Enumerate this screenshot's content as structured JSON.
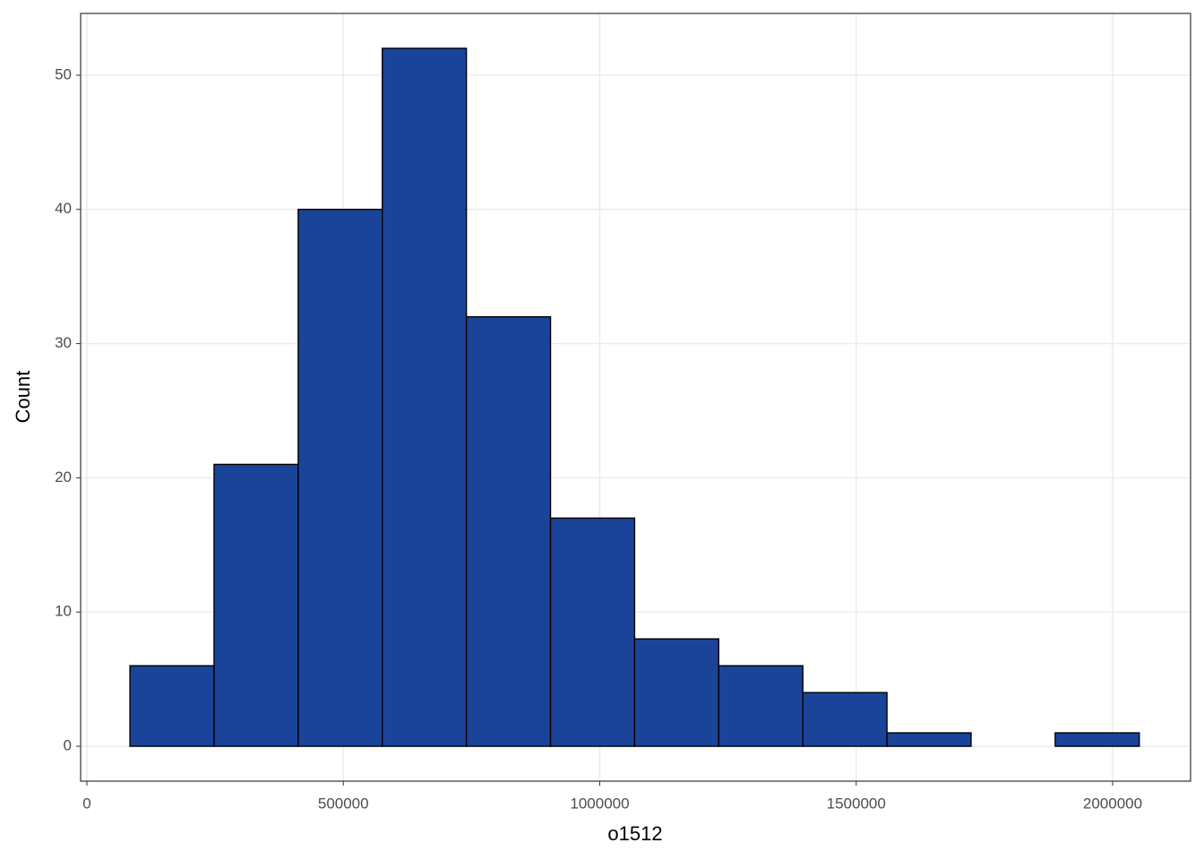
{
  "chart_data": {
    "type": "histogram",
    "x_label": "o1512",
    "y_label": "Count",
    "bins": [
      84000,
      248000,
      412000,
      576000,
      740000,
      904000,
      1068000,
      1232000,
      1396000,
      1560000,
      1724000,
      1888000,
      2052000
    ],
    "values": [
      6,
      21,
      40,
      52,
      32,
      17,
      8,
      6,
      4,
      1,
      0,
      1
    ],
    "color": "#1a4499",
    "xlim": [
      -12200,
      2152000
    ],
    "ylim": [
      -2.6,
      54.6
    ],
    "xticks": [
      0,
      500000,
      1000000,
      1500000,
      2000000
    ],
    "yticks": [
      0,
      10,
      20,
      30,
      40,
      50
    ],
    "grid": true
  }
}
